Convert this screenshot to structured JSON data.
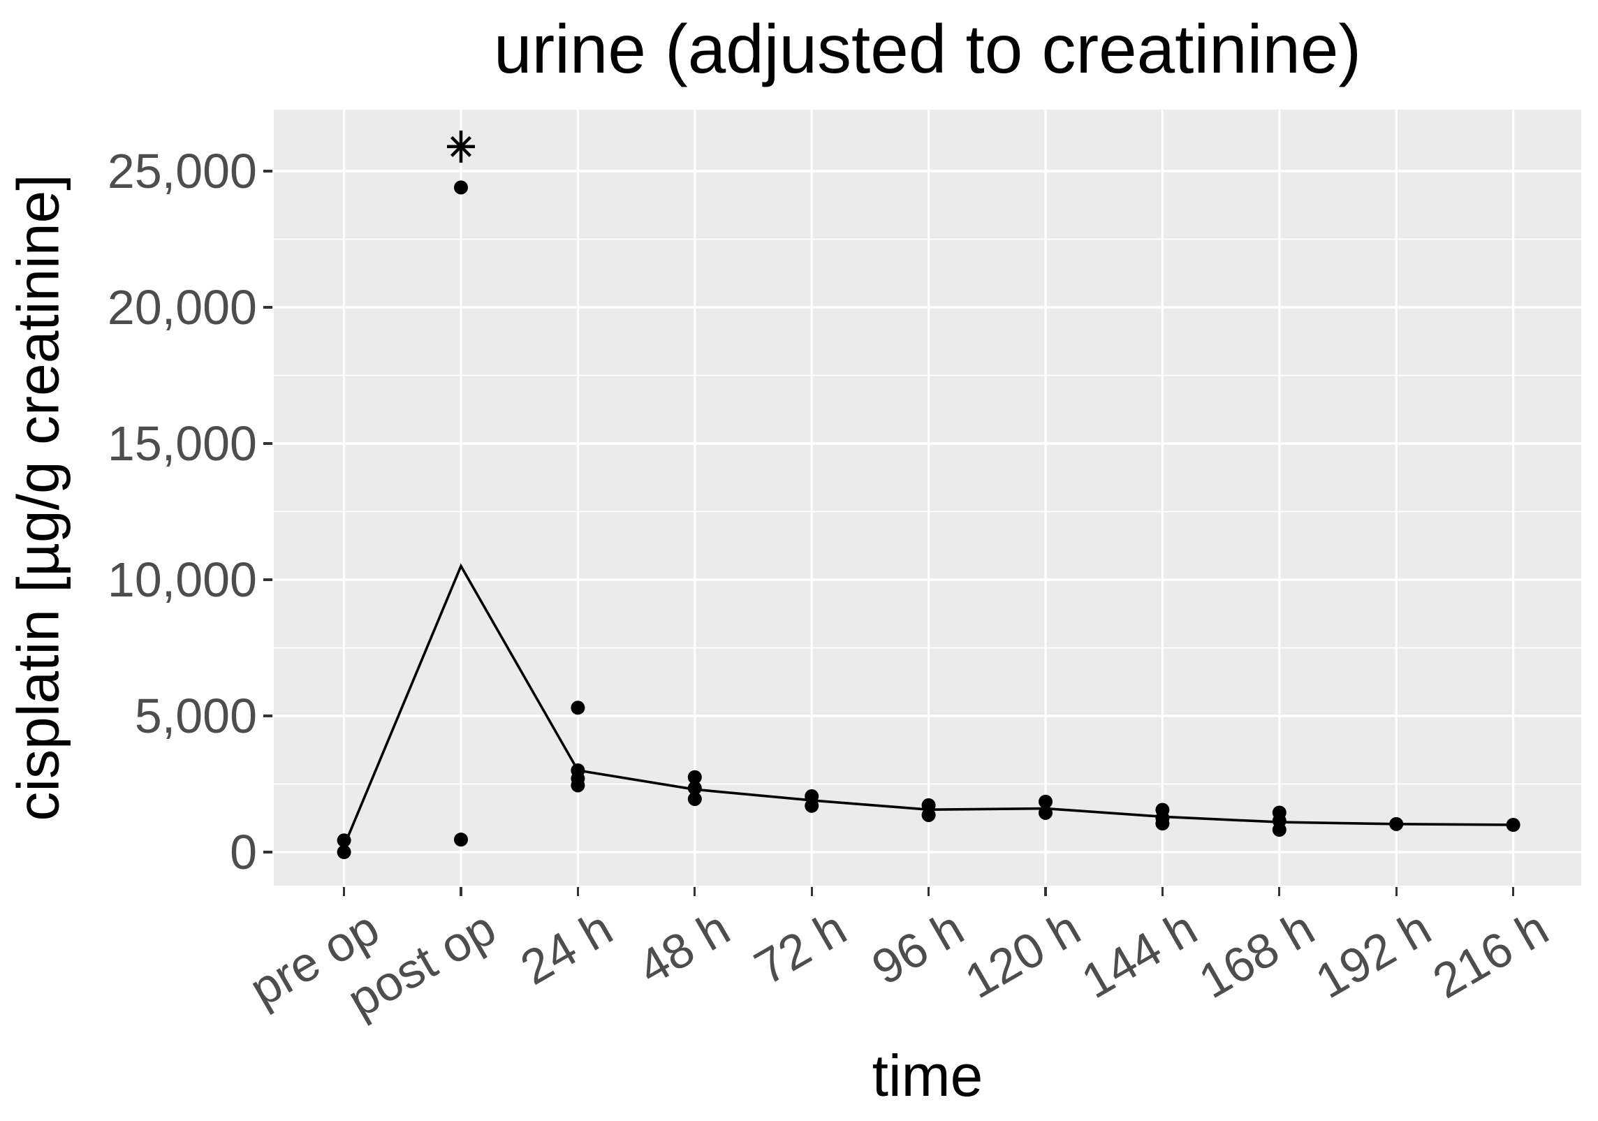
{
  "chart": {
    "title": "urine (adjusted to creatinine)",
    "x_axis_title": "time",
    "y_axis_title": "cisplatin [µg/g creatinine]"
  },
  "chart_data": {
    "type": "line",
    "title": "urine (adjusted to creatinine)",
    "xlabel": "time",
    "ylabel": "cisplatin [µg/g creatinine]",
    "categories": [
      "pre op",
      "post op",
      "24 h",
      "48 h",
      "72 h",
      "96 h",
      "120 h",
      "144 h",
      "168 h",
      "192 h",
      "216 h"
    ],
    "series": [
      {
        "name": "summary-line",
        "values": [
          220,
          10500,
          3000,
          2300,
          1900,
          1560,
          1600,
          1300,
          1100,
          1030,
          1000
        ]
      }
    ],
    "points": [
      {
        "category": "pre op",
        "values": [
          430,
          0
        ]
      },
      {
        "category": "post op",
        "values": [
          24400,
          460
        ]
      },
      {
        "category": "24 h",
        "values": [
          5300,
          3000,
          2700,
          2450
        ]
      },
      {
        "category": "48 h",
        "values": [
          2750,
          2350,
          1950
        ]
      },
      {
        "category": "72 h",
        "values": [
          2050,
          1700
        ]
      },
      {
        "category": "96 h",
        "values": [
          1720,
          1360
        ]
      },
      {
        "category": "120 h",
        "values": [
          1850,
          1440
        ]
      },
      {
        "category": "144 h",
        "values": [
          1550,
          1250,
          1050
        ]
      },
      {
        "category": "168 h",
        "values": [
          1450,
          1150,
          820
        ]
      },
      {
        "category": "192 h",
        "values": [
          1030
        ]
      },
      {
        "category": "216 h",
        "values": [
          1000
        ]
      }
    ],
    "annotation": {
      "symbol": "*",
      "category": "post op",
      "value": 25900
    },
    "y_ticks": [
      0,
      5000,
      10000,
      15000,
      20000,
      25000
    ],
    "y_tick_labels": [
      "0",
      "5,000",
      "10,000",
      "15,000",
      "20,000",
      "25,000"
    ],
    "y_minor_gridlines": [
      2500,
      7500,
      12500,
      17500,
      22500
    ],
    "ylim": [
      -1282,
      27256
    ],
    "grid": true,
    "legend": "none",
    "panel_background": "#ebebeb",
    "gridline_color": "#ffffff",
    "tick_label_color": "#4d4d4d",
    "tick_mark_color": "#333333",
    "data_color": "#000000"
  }
}
